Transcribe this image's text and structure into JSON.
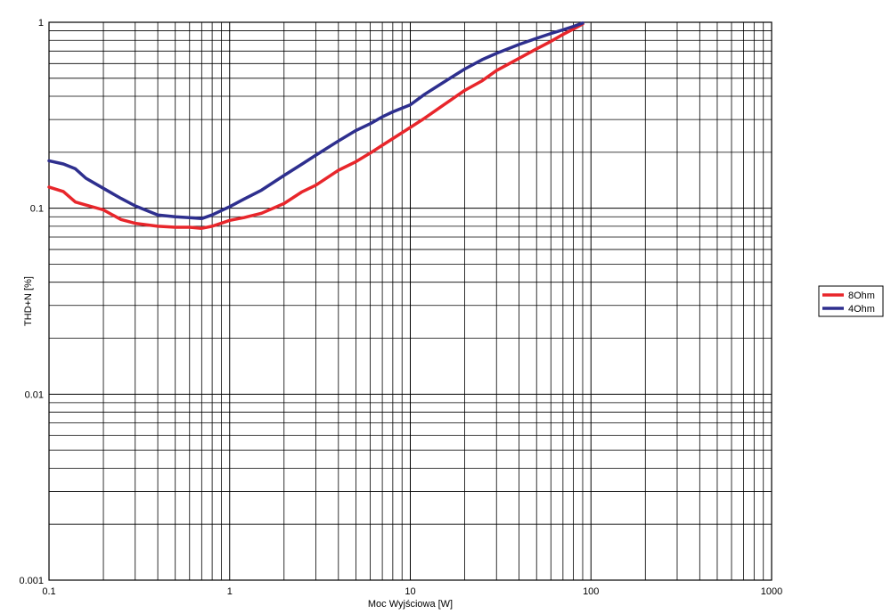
{
  "chart_data": {
    "type": "line",
    "xscale": "log",
    "yscale": "log",
    "xlim": [
      0.1,
      1000
    ],
    "ylim": [
      0.001,
      1
    ],
    "xlabel": "Moc Wyjściowa [W]",
    "ylabel": "THD+N [%]",
    "x_ticks": [
      "0.1",
      "1",
      "10",
      "100",
      "1000"
    ],
    "y_ticks": [
      "0.001",
      "0.01",
      "0.1",
      "1"
    ],
    "grid": true,
    "legend_position": "right",
    "series": [
      {
        "name": "8Ohm",
        "color": "#e8262b",
        "x": [
          0.1,
          0.12,
          0.14,
          0.16,
          0.2,
          0.25,
          0.3,
          0.4,
          0.5,
          0.6,
          0.7,
          0.8,
          1,
          1.2,
          1.5,
          2,
          2.5,
          3,
          4,
          5,
          6,
          7,
          8,
          10,
          12,
          15,
          20,
          25,
          30,
          40,
          50,
          60,
          70,
          80,
          90
        ],
        "y": [
          0.13,
          0.123,
          0.108,
          0.104,
          0.098,
          0.087,
          0.083,
          0.08,
          0.079,
          0.079,
          0.078,
          0.08,
          0.086,
          0.089,
          0.094,
          0.106,
          0.122,
          0.133,
          0.16,
          0.178,
          0.198,
          0.218,
          0.237,
          0.272,
          0.305,
          0.355,
          0.43,
          0.485,
          0.55,
          0.64,
          0.72,
          0.79,
          0.86,
          0.92,
          0.98
        ]
      },
      {
        "name": "4Ohm",
        "color": "#2e2f8e",
        "x": [
          0.1,
          0.12,
          0.14,
          0.16,
          0.2,
          0.25,
          0.3,
          0.4,
          0.5,
          0.6,
          0.7,
          0.8,
          1,
          1.2,
          1.5,
          2,
          2.5,
          3,
          4,
          5,
          6,
          7,
          8,
          10,
          12,
          15,
          20,
          25,
          30,
          40,
          50,
          60,
          70,
          80,
          90
        ],
        "y": [
          0.18,
          0.173,
          0.163,
          0.145,
          0.128,
          0.113,
          0.103,
          0.092,
          0.09,
          0.089,
          0.088,
          0.092,
          0.102,
          0.112,
          0.125,
          0.15,
          0.172,
          0.193,
          0.23,
          0.262,
          0.285,
          0.31,
          0.33,
          0.36,
          0.41,
          0.47,
          0.56,
          0.63,
          0.68,
          0.76,
          0.82,
          0.87,
          0.91,
          0.95,
          0.99
        ]
      }
    ]
  }
}
